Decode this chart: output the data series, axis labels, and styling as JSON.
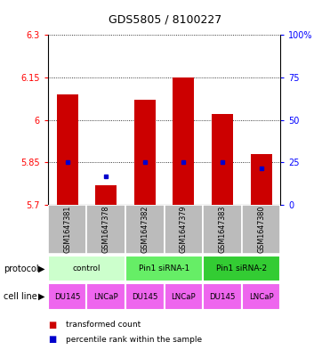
{
  "title": "GDS5805 / 8100227",
  "samples": [
    "GSM1647381",
    "GSM1647378",
    "GSM1647382",
    "GSM1647379",
    "GSM1647383",
    "GSM1647380"
  ],
  "red_values": [
    6.09,
    5.77,
    6.07,
    6.15,
    6.02,
    5.88
  ],
  "blue_values": [
    5.85,
    5.8,
    5.85,
    5.85,
    5.85,
    5.83
  ],
  "ymin": 5.7,
  "ymax": 6.3,
  "yticks_left": [
    5.7,
    5.85,
    6.0,
    6.15,
    6.3
  ],
  "yticks_left_labels": [
    "5.7",
    "5.85",
    "6",
    "6.15",
    "6.3"
  ],
  "yticks_right": [
    0,
    25,
    50,
    75,
    100
  ],
  "yticks_right_labels": [
    "0",
    "25",
    "50",
    "75",
    "100%"
  ],
  "protocols": [
    {
      "label": "control",
      "span": [
        0,
        2
      ],
      "color": "#ccffcc"
    },
    {
      "label": "Pin1 siRNA-1",
      "span": [
        2,
        4
      ],
      "color": "#66ee66"
    },
    {
      "label": "Pin1 siRNA-2",
      "span": [
        4,
        6
      ],
      "color": "#33cc33"
    }
  ],
  "cell_lines": [
    "DU145",
    "LNCaP",
    "DU145",
    "LNCaP",
    "DU145",
    "LNCaP"
  ],
  "cell_line_color": "#ee66ee",
  "sample_bg_color": "#bbbbbb",
  "bar_color": "#cc0000",
  "dot_color": "#0000cc",
  "legend_red_label": "transformed count",
  "legend_blue_label": "percentile rank within the sample"
}
